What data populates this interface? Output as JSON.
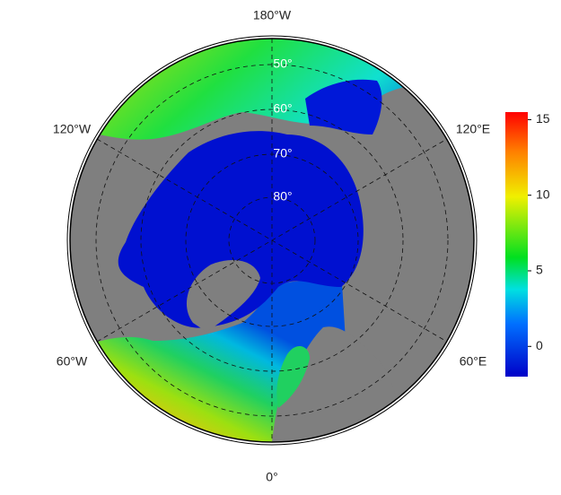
{
  "map": {
    "longitude_labels": {
      "top": "180°W",
      "upper_left": "120°W",
      "upper_right": "120°E",
      "lower_left": "60°W",
      "lower_right": "60°E",
      "bottom": "0°"
    },
    "latitude_labels": [
      "50°",
      "60°",
      "70°",
      "80°"
    ],
    "colorbar": {
      "lim": [
        -2,
        15.5
      ],
      "ticks": [
        0,
        5,
        10,
        15
      ]
    }
  }
}
